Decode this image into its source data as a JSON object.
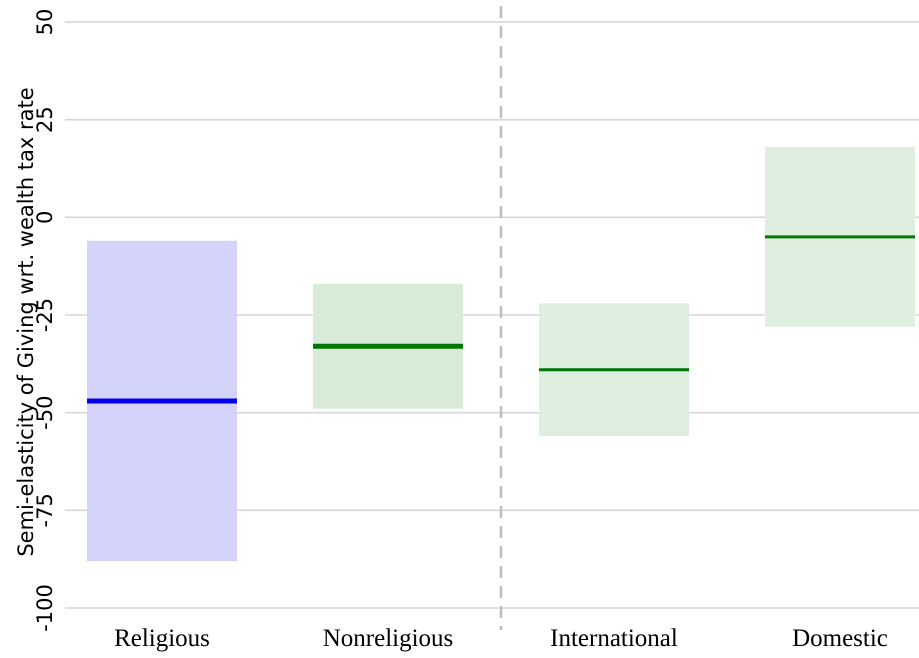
{
  "chart_data": {
    "type": "bar",
    "ylabel": "Semi-elasticity of Giving wrt. wealth tax rate",
    "xlabel": "",
    "ylim": [
      -102,
      50
    ],
    "yticks": [
      {
        "value": 50,
        "label": "50"
      },
      {
        "value": 25,
        "label": "25"
      },
      {
        "value": 0,
        "label": "0"
      },
      {
        "value": -25,
        "label": "-25"
      },
      {
        "value": -50,
        "label": "-50"
      },
      {
        "value": -75,
        "label": "-75"
      },
      {
        "value": -100,
        "label": "-100"
      }
    ],
    "grid": true,
    "categories": [
      "Religious",
      "Nonreligious",
      "International",
      "Domestic"
    ],
    "estimates": [
      {
        "category": "Religious",
        "value": -47,
        "ci_low": -88,
        "ci_high": -6,
        "color": "#0000ee",
        "fill": "#d4d4fa"
      },
      {
        "category": "Nonreligious",
        "value": -33,
        "ci_low": -49,
        "ci_high": -17,
        "color": "#007700",
        "fill": "#d8ebd8"
      },
      {
        "category": "International",
        "value": -39,
        "ci_low": -56,
        "ci_high": -22,
        "color": "#007700",
        "fill": "#dfefdf"
      },
      {
        "category": "Domestic",
        "value": -5,
        "ci_low": -28,
        "ci_high": 18,
        "color": "#007700",
        "fill": "#dfefdf"
      }
    ],
    "separator_after_category": "Nonreligious"
  }
}
